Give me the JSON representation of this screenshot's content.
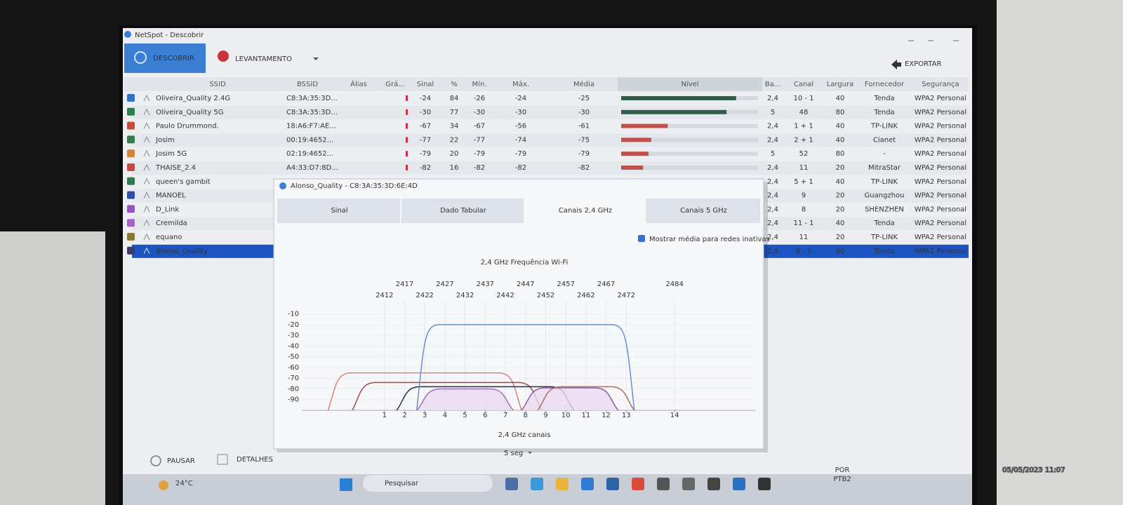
{
  "window": {
    "title": "NetSpot - Descobrir"
  },
  "toolbar": {
    "discover": "DESCOBRIR",
    "survey": "LEVANTAMENTO",
    "export": "EXPORTAR"
  },
  "table": {
    "columns": [
      "SSID",
      "BSSID",
      "Álias",
      "Grá...",
      "Sinal",
      "%",
      "Mín.",
      "Máx.",
      "Média",
      "Nível",
      "Ba...",
      "Canal",
      "Largura",
      "Fornecedor",
      "Segurança"
    ],
    "rows": [
      {
        "color": "#2f6fd0",
        "ssid": "Oliveira_Quality 2.4G",
        "bssid": "C8:3A:35:3D...",
        "sinal": -24,
        "pct": 84,
        "min": -26,
        "max": -24,
        "media": -25,
        "level_color": "#2f5e46",
        "band": "2,4",
        "canal": "10 - 1",
        "largura": 40,
        "fornecedor": "Tenda",
        "seguranca": "WPA2 Personal"
      },
      {
        "color": "#2e7d4f",
        "ssid": "Oliveira_Quality 5G",
        "bssid": "C8:3A:35:3D...",
        "sinal": -30,
        "pct": 77,
        "min": -30,
        "max": -30,
        "media": -30,
        "level_color": "#2f5e46",
        "band": "5",
        "canal": "48",
        "largura": 80,
        "fornecedor": "Tenda",
        "seguranca": "WPA2 Personal"
      },
      {
        "color": "#c94a3d",
        "ssid": "Paulo Drummond.",
        "bssid": "18:A6:F7:AE...",
        "sinal": -67,
        "pct": 34,
        "min": -67,
        "max": -56,
        "media": -61,
        "level_color": "#c2504a",
        "band": "2,4",
        "canal": "1 + 1",
        "largura": 40,
        "fornecedor": "TP-LINK",
        "seguranca": "WPA2 Personal"
      },
      {
        "color": "#2e7d4f",
        "ssid": "Josim",
        "bssid": "00:19:4652...",
        "sinal": -77,
        "pct": 22,
        "min": -77,
        "max": -74,
        "media": -75,
        "level_color": "#c2504a",
        "band": "2,4",
        "canal": "2 + 1",
        "largura": 40,
        "fornecedor": "Cianet",
        "seguranca": "WPA2 Personal"
      },
      {
        "color": "#d9822b",
        "ssid": "Josim 5G",
        "bssid": "02:19:4652...",
        "sinal": -79,
        "pct": 20,
        "min": -79,
        "max": -79,
        "media": -79,
        "level_color": "#c2504a",
        "band": "5",
        "canal": "52",
        "largura": 80,
        "fornecedor": "-",
        "seguranca": "WPA2 Personal"
      },
      {
        "color": "#c94a3d",
        "ssid": "THAISE_2.4",
        "bssid": "A4:33:D7:8D...",
        "sinal": -82,
        "pct": 16,
        "min": -82,
        "max": -82,
        "media": -82,
        "level_color": "#c2504a",
        "band": "2,4",
        "canal": "11",
        "largura": 20,
        "fornecedor": "MitraStar",
        "seguranca": "WPA2 Personal"
      },
      {
        "color": "#2e7d4f",
        "ssid": "queen's gambit",
        "band": "2,4",
        "canal": "5 + 1",
        "largura": 40,
        "fornecedor": "TP-LINK",
        "seguranca": "WPA2 Personal"
      },
      {
        "color": "#2f4fb0",
        "ssid": "MANOEL",
        "band": "2,4",
        "canal": "9",
        "largura": 20,
        "fornecedor": "Guangzhou",
        "seguranca": "WPA2 Personal"
      },
      {
        "color": "#9b4fc0",
        "ssid": "D_Link",
        "band": "2,4",
        "canal": "8",
        "largura": 20,
        "fornecedor": "SHENZHEN",
        "seguranca": "WPA2 Personal"
      },
      {
        "color": "#a562c9",
        "ssid": "Cremilda",
        "band": "2,4",
        "canal": "11 - 1",
        "largura": 40,
        "fornecedor": "Tenda",
        "seguranca": "WPA2 Personal"
      },
      {
        "color": "#8a7a2e",
        "ssid": "equano",
        "band": "2,4",
        "canal": "11",
        "largura": 20,
        "fornecedor": "TP-LINK",
        "seguranca": "WPA2 Personal"
      },
      {
        "color": "#3a3a6a",
        "ssid": "Alonso_Quality",
        "band": "2,4",
        "canal": "8 - 1",
        "largura": 40,
        "fornecedor": "Tenda",
        "seguranca": "WPA2 Personal",
        "selected": true
      }
    ]
  },
  "dialog": {
    "title": "Alonso_Quality - C8:3A:35:3D:6E:4D",
    "tabs": [
      "Sinal",
      "Dado Tabular",
      "Canais 2,4 GHz",
      "Canais 5 GHz"
    ],
    "active_tab": 2,
    "checkbox": "Mostrar média para redes inativas",
    "chart_data": {
      "type": "spectrum",
      "title": "2,4 GHz Frequência Wi-Fi",
      "xlabel": "2,4 GHz canais",
      "xlim": [
        2388,
        2504
      ],
      "ylim": [
        -100,
        -5
      ],
      "freq_ticks": [
        2412,
        2417,
        2422,
        2427,
        2432,
        2437,
        2442,
        2447,
        2452,
        2457,
        2462,
        2467,
        2472,
        2484
      ],
      "xticks": [
        {
          "value": 2412,
          "label": "1"
        },
        {
          "value": 2417,
          "label": "2"
        },
        {
          "value": 2422,
          "label": "3"
        },
        {
          "value": 2427,
          "label": "4"
        },
        {
          "value": 2432,
          "label": "5"
        },
        {
          "value": 2437,
          "label": "6"
        },
        {
          "value": 2442,
          "label": "7"
        },
        {
          "value": 2447,
          "label": "8"
        },
        {
          "value": 2452,
          "label": "9"
        },
        {
          "value": 2457,
          "label": "10"
        },
        {
          "value": 2462,
          "label": "11"
        },
        {
          "value": 2467,
          "label": "12"
        },
        {
          "value": 2472,
          "label": "13"
        },
        {
          "value": 2484,
          "label": "14"
        }
      ],
      "yticks": [
        -10,
        -20,
        -30,
        -40,
        -50,
        -60,
        -70,
        -80,
        -90
      ],
      "curves": [
        {
          "from": 2398,
          "to": 2446,
          "level": -65,
          "color": "#d98078"
        },
        {
          "from": 2404,
          "to": 2451,
          "level": -74,
          "color": "#9a4a4a"
        },
        {
          "from": 2415,
          "to": 2459,
          "level": -78,
          "color": "#2c2a4a"
        },
        {
          "from": 2420,
          "to": 2444,
          "level": -80,
          "color": "#9b6fb8",
          "fill": "#e8d8ef"
        },
        {
          "from": 2446,
          "to": 2470,
          "level": -79,
          "color": "#8c5aa8",
          "fill": "#ead9f0"
        },
        {
          "from": 2450,
          "to": 2474,
          "level": -78,
          "color": "#b0705a"
        },
        {
          "from": 2420,
          "to": 2474,
          "level": -20,
          "color": "#6b8fc9"
        }
      ]
    }
  },
  "footer": {
    "pause": "PAUSAR",
    "details": "DETALHES",
    "interval": "5 seg"
  },
  "taskbar": {
    "weather": "24°C",
    "search": "Pesquisar",
    "lang": "POR",
    "layout": "PTB2"
  },
  "photo_timestamp": "05/05/2023  11:07"
}
